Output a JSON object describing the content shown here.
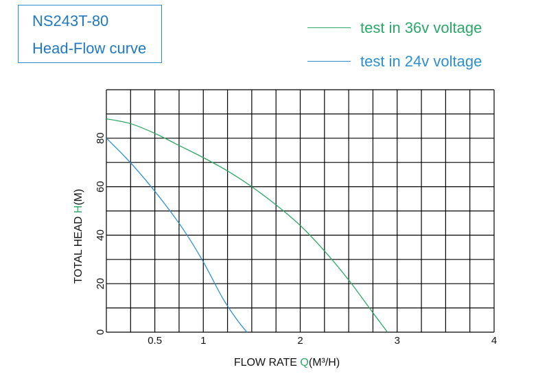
{
  "title_box": {
    "line1": "NS243T-80",
    "line2": "Head-Flow curve"
  },
  "colors": {
    "title": "#1f78c0",
    "series_36v": "#2aa867",
    "series_24v": "#2b8fcf",
    "grid": "#000000"
  },
  "chart_data": {
    "type": "line",
    "xlabel_prefix": "FLOW RATE  ",
    "xlabel_symbol": "Q",
    "xlabel_suffix": "(M³/H)",
    "ylabel_prefix": "TOTAL HEAD ",
    "ylabel_symbol": "H",
    "ylabel_suffix": "(M)",
    "xlim": [
      0,
      4
    ],
    "ylim": [
      0,
      100
    ],
    "x_ticks": [
      {
        "value": 0.5,
        "label": "0.5"
      },
      {
        "value": 1,
        "label": "1"
      },
      {
        "value": 2,
        "label": "2"
      },
      {
        "value": 3,
        "label": "3"
      },
      {
        "value": 4,
        "label": "4"
      }
    ],
    "y_ticks": [
      {
        "value": 0,
        "label": "0"
      },
      {
        "value": 20,
        "label": "20"
      },
      {
        "value": 40,
        "label": "40"
      },
      {
        "value": 60,
        "label": "60"
      },
      {
        "value": 80,
        "label": "80"
      }
    ],
    "grid": true,
    "legend_position": "top-right",
    "series": [
      {
        "name": "test in 36v voltage",
        "color": "#2aa867",
        "x": [
          0,
          0.25,
          0.5,
          0.75,
          1.0,
          1.25,
          1.5,
          1.75,
          2.0,
          2.25,
          2.5,
          2.75,
          2.9
        ],
        "y": [
          88,
          86,
          82,
          77,
          72,
          66.5,
          60,
          52.5,
          44,
          33.5,
          21.5,
          8,
          0
        ]
      },
      {
        "name": "test in 24v voltage",
        "color": "#2b8fcf",
        "x": [
          0,
          0.2,
          0.4,
          0.6,
          0.8,
          1.0,
          1.2,
          1.35,
          1.45
        ],
        "y": [
          80,
          72,
          63,
          53,
          42,
          29,
          14,
          5,
          0
        ]
      }
    ]
  }
}
